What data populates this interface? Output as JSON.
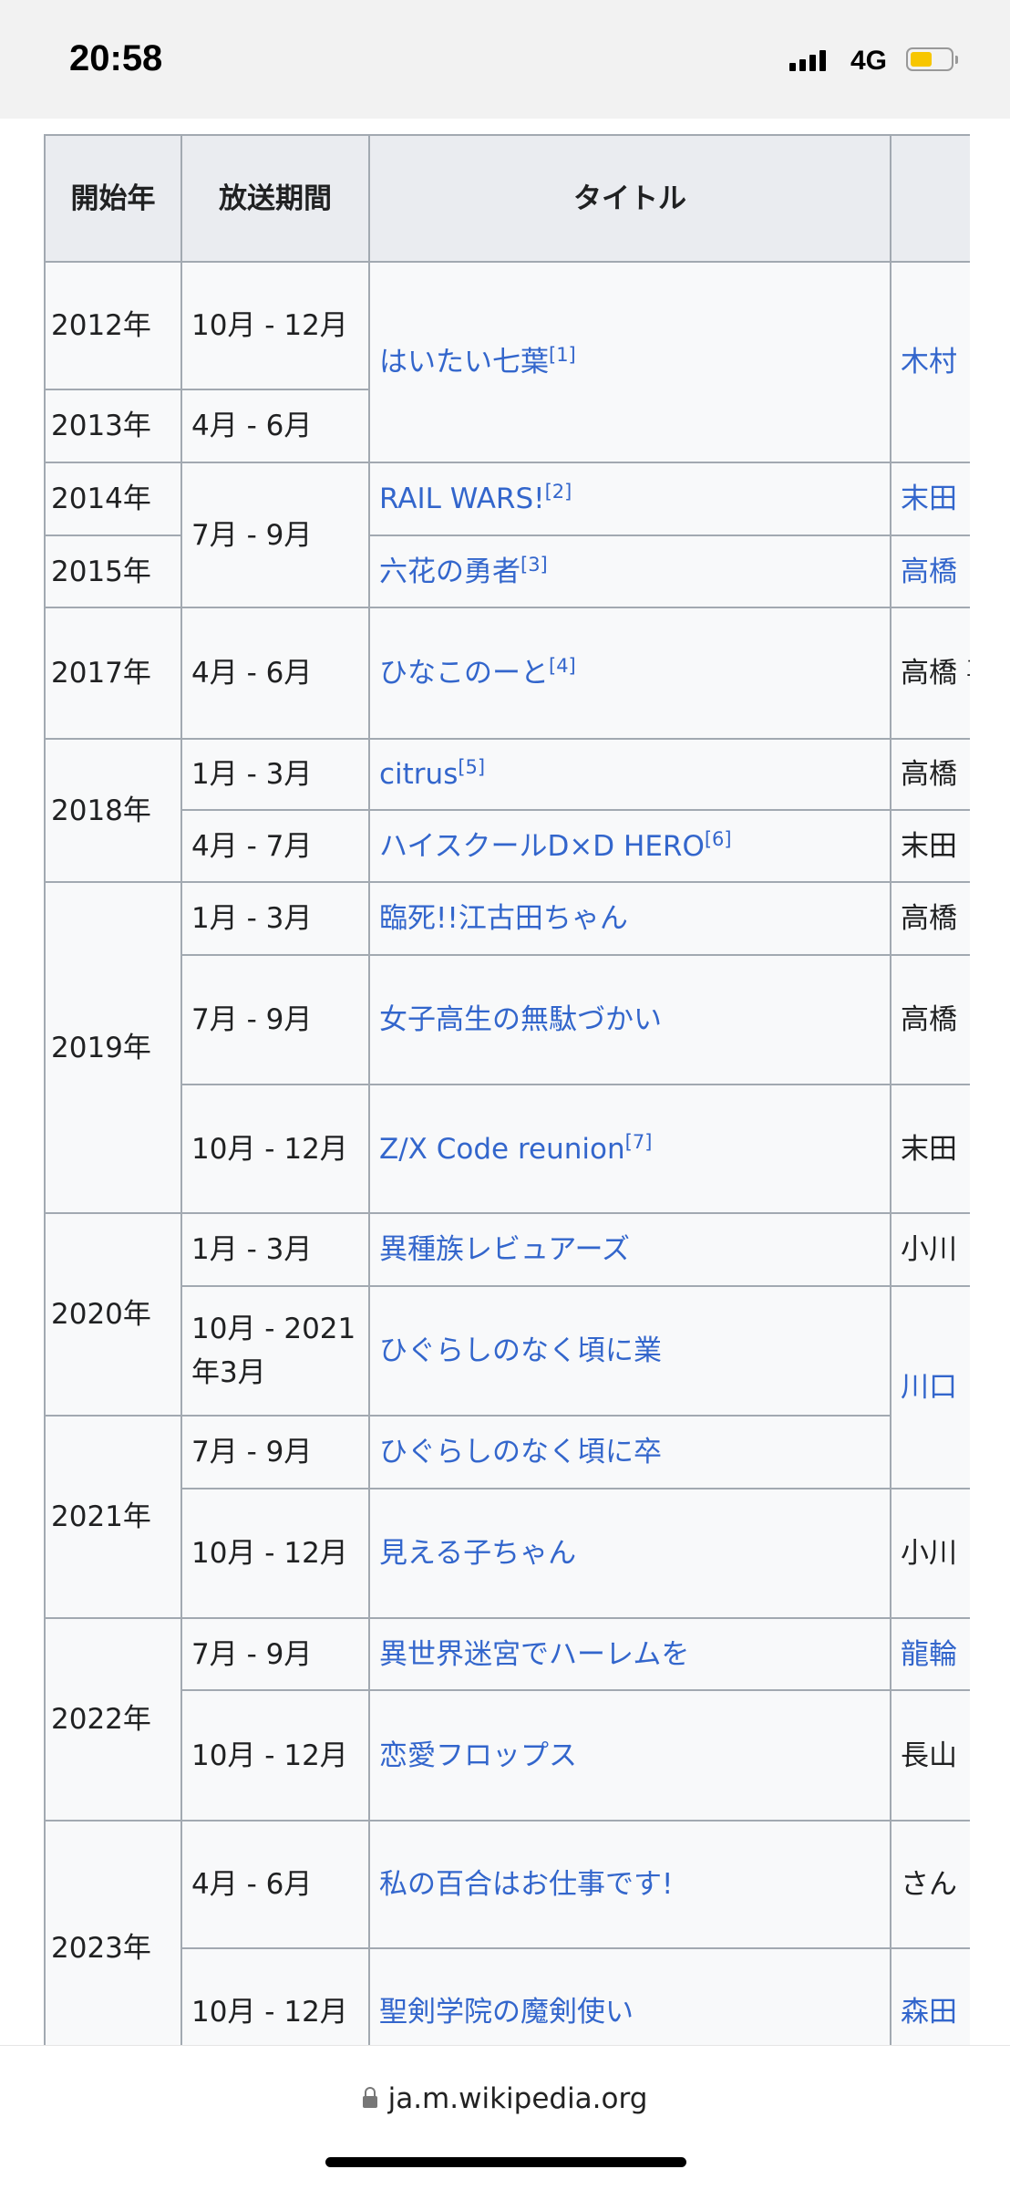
{
  "status_bar": {
    "time": "20:58",
    "network": "4G",
    "battery_level": 0.55,
    "battery_color": "#f7c600"
  },
  "table": {
    "headers": [
      "開始年",
      "放送期間",
      "タイトル",
      ""
    ],
    "link_color": "#3366cc",
    "rows": [
      {
        "year": "2012年",
        "year_rowspan": 1,
        "period": "10月 - 12月",
        "title": "はいたい七葉",
        "ref": "[1]",
        "title_rowspan": 2,
        "title_link": true,
        "staff": "木村",
        "staff_rowspan": 2,
        "staff_link": true
      },
      {
        "year": "2013年",
        "year_rowspan": 1,
        "period": "4月 - 6月"
      },
      {
        "year": "2014年",
        "year_rowspan": 1,
        "period": "7月 - 9月",
        "period_rowspan": 2,
        "title": "RAIL WARS!",
        "ref": "[2]",
        "title_link": true,
        "staff": "末田",
        "staff_link": true
      },
      {
        "year": "2015年",
        "year_rowspan": 1,
        "title": "六花の勇者",
        "ref": "[3]",
        "title_link": true,
        "staff": "高橋",
        "staff_link": true
      },
      {
        "year": "2017年",
        "year_rowspan": 1,
        "period": "4月 - 6月",
        "title": "ひなこのーと",
        "ref": "[4]",
        "title_link": true,
        "staff": "高橋 喜多",
        "staff_link": false
      },
      {
        "year": "2018年",
        "year_rowspan": 2,
        "period": "1月 - 3月",
        "title": "citrus",
        "ref": "[5]",
        "title_link": true,
        "staff": "高橋",
        "staff_link": false
      },
      {
        "period": "4月 - 7月",
        "title": "ハイスクールD×D HERO",
        "ref": "[6]",
        "title_link": true,
        "staff": "末田",
        "staff_link": false
      },
      {
        "year": "2019年",
        "year_rowspan": 3,
        "period": "1月 - 3月",
        "title": "臨死!!江古田ちゃん",
        "title_link": true,
        "staff": "高橋",
        "staff_link": false
      },
      {
        "period": "7月 - 9月",
        "title": "女子高生の無駄づかい",
        "title_link": true,
        "staff": "高橋 さん",
        "staff_link": false
      },
      {
        "period": "10月 - 12月",
        "title": "Z/X Code reunion",
        "ref": "[7]",
        "title_link": true,
        "staff": "末田",
        "staff_link": false
      },
      {
        "year": "2020年",
        "year_rowspan": 2,
        "period": "1月 - 3月",
        "title": "異種族レビュアーズ",
        "title_link": true,
        "staff": "小川",
        "staff_link": false
      },
      {
        "period": "10月 - 2021年3月",
        "title": "ひぐらしのなく頃に業",
        "title_link": true,
        "staff": "川口",
        "staff_rowspan": 2,
        "staff_link": true
      },
      {
        "year": "2021年",
        "year_rowspan": 2,
        "period": "7月 - 9月",
        "title": "ひぐらしのなく頃に卒",
        "title_link": true
      },
      {
        "period": "10月 - 12月",
        "title": "見える子ちゃん",
        "title_link": true,
        "staff": "小川",
        "staff_link": false
      },
      {
        "year": "2022年",
        "year_rowspan": 2,
        "period": "7月 - 9月",
        "title": "異世界迷宮でハーレムを",
        "title_link": true,
        "staff": "龍輪",
        "staff_link": true
      },
      {
        "period": "10月 - 12月",
        "title": "恋愛フロップス",
        "title_link": true,
        "staff": "長山",
        "staff_link": false
      },
      {
        "year": "2023年",
        "year_rowspan": 2,
        "period": "4月 - 6月",
        "title": "私の百合はお仕事です!",
        "title_link": true,
        "staff": "さん",
        "staff_link": false
      },
      {
        "period": "10月 - 12月",
        "title": "聖剣学院の魔剣使い",
        "title_link": true,
        "staff": "森田",
        "staff_link": true
      }
    ]
  },
  "browser": {
    "url": "ja.m.wikipedia.org"
  }
}
